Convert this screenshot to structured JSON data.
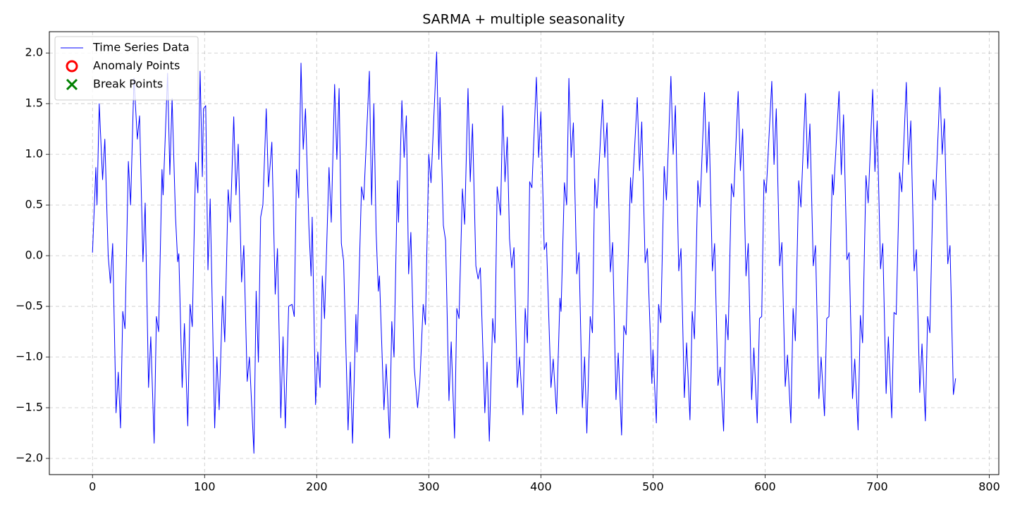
{
  "chart_data": {
    "type": "line",
    "title": "SARMA + multiple seasonality",
    "xlim": [
      -38.5,
      808.5
    ],
    "ylim": [
      -2.16,
      2.21
    ],
    "xticks": [
      0,
      100,
      200,
      300,
      400,
      500,
      600,
      700,
      800
    ],
    "yticks": [
      {
        "value": -2,
        "label": "−2.0"
      },
      {
        "value": -1.5,
        "label": "−1.5"
      },
      {
        "value": -1,
        "label": "−1.0"
      },
      {
        "value": -0.5,
        "label": "−0.5"
      },
      {
        "value": 0,
        "label": "0.0"
      },
      {
        "value": 0.5,
        "label": "0.5"
      },
      {
        "value": 1,
        "label": "1.0"
      },
      {
        "value": 1.5,
        "label": "1.5"
      },
      {
        "value": 2,
        "label": "2.0"
      }
    ],
    "grid": true,
    "legend": "upper left",
    "series": [
      {
        "name": "Time Series Data",
        "color": "#0000ff",
        "marker": "line",
        "x": [
          0,
          3,
          4,
          6,
          9,
          11,
          14,
          16,
          18,
          21,
          23,
          25,
          27,
          29,
          32,
          34,
          37,
          40,
          42,
          45,
          47,
          50,
          52,
          55,
          57,
          59,
          62,
          63,
          67,
          69,
          71,
          74,
          76,
          77,
          80,
          82,
          85,
          87,
          89,
          92,
          94,
          96,
          98,
          99,
          101,
          103,
          105,
          109,
          111,
          113,
          116,
          118,
          121,
          123,
          126,
          128,
          130,
          133,
          135,
          138,
          140,
          144,
          146,
          148,
          150,
          152,
          155,
          157,
          160,
          163,
          165,
          168,
          170,
          172,
          175,
          178,
          180,
          182,
          184,
          186,
          188,
          190,
          193,
          195,
          196,
          199,
          201,
          203,
          205,
          207,
          211,
          213,
          216,
          218,
          220,
          222,
          224,
          228,
          230,
          232,
          235,
          236,
          240,
          242,
          247,
          249,
          251,
          253,
          255,
          256,
          260,
          262,
          265,
          267,
          269,
          272,
          273,
          276,
          278,
          280,
          282,
          284,
          287,
          290,
          292,
          295,
          297,
          300,
          302,
          307,
          309,
          310,
          313,
          315,
          318,
          320,
          323,
          325,
          327,
          330,
          332,
          335,
          337,
          339,
          342,
          344,
          346,
          350,
          352,
          354,
          357,
          359,
          361,
          364,
          366,
          368,
          370,
          372,
          374,
          376,
          379,
          381,
          384,
          386,
          388,
          390,
          392,
          396,
          398,
          400,
          403,
          405,
          409,
          411,
          414,
          417,
          418,
          421,
          423,
          425,
          427,
          429,
          432,
          434,
          437,
          439,
          441,
          444,
          446,
          448,
          450,
          455,
          457,
          459,
          462,
          464,
          467,
          469,
          472,
          474,
          476,
          480,
          481,
          486,
          488,
          490,
          493,
          495,
          499,
          500,
          503,
          505,
          507,
          510,
          512,
          516,
          518,
          520,
          523,
          525,
          528,
          530,
          533,
          535,
          537,
          540,
          542,
          546,
          548,
          550,
          553,
          555,
          558,
          560,
          563,
          565,
          567,
          570,
          572,
          576,
          578,
          580,
          583,
          585,
          588,
          590,
          593,
          595,
          597,
          599,
          601,
          606,
          608,
          610,
          613,
          615,
          618,
          620,
          623,
          625,
          627,
          630,
          632,
          636,
          638,
          640,
          643,
          645,
          648,
          650,
          653,
          655,
          657,
          660,
          661,
          666,
          668,
          670,
          673,
          675,
          678,
          680,
          683,
          685,
          687,
          690,
          692,
          696,
          698,
          700,
          703,
          705,
          708,
          710,
          713,
          715,
          717,
          720,
          722,
          726,
          728,
          730,
          733,
          735,
          738,
          740,
          743,
          745,
          747,
          750,
          752,
          756,
          758,
          760,
          763,
          765,
          768,
          770
        ],
        "values": [
          0.03,
          0.87,
          0.5,
          1.5,
          0.75,
          1.15,
          0.0,
          -0.27,
          0.12,
          -1.55,
          -1.15,
          -1.7,
          -0.55,
          -0.72,
          0.93,
          0.5,
          1.75,
          1.15,
          1.38,
          -0.06,
          0.52,
          -1.3,
          -0.8,
          -1.85,
          -0.6,
          -0.75,
          0.85,
          0.6,
          1.8,
          0.8,
          1.55,
          0.4,
          -0.06,
          0.02,
          -1.3,
          -0.67,
          -1.68,
          -0.48,
          -0.7,
          0.92,
          0.62,
          1.82,
          0.78,
          1.45,
          1.48,
          -0.14,
          0.56,
          -1.7,
          -1.0,
          -1.52,
          -0.4,
          -0.85,
          0.65,
          0.33,
          1.37,
          0.6,
          1.1,
          -0.26,
          0.1,
          -1.24,
          -1.0,
          -1.95,
          -0.35,
          -1.05,
          0.38,
          0.5,
          1.45,
          0.68,
          1.12,
          -0.38,
          0.07,
          -1.6,
          -0.8,
          -1.7,
          -0.5,
          -0.48,
          -0.6,
          0.85,
          0.57,
          1.9,
          1.05,
          1.45,
          0.3,
          -0.2,
          0.38,
          -1.47,
          -0.95,
          -1.3,
          -0.2,
          -0.62,
          0.87,
          0.33,
          1.69,
          0.95,
          1.65,
          0.12,
          -0.05,
          -1.72,
          -1.05,
          -1.85,
          -0.58,
          -0.95,
          0.68,
          0.55,
          1.82,
          0.5,
          1.5,
          0.24,
          -0.35,
          -0.2,
          -1.52,
          -1.07,
          -1.8,
          -0.65,
          -1.0,
          0.74,
          0.33,
          1.53,
          0.97,
          1.38,
          -0.18,
          0.23,
          -1.1,
          -1.5,
          -1.25,
          -0.48,
          -0.68,
          1.0,
          0.72,
          2.01,
          0.95,
          1.56,
          0.3,
          0.15,
          -1.43,
          -0.85,
          -1.8,
          -0.52,
          -0.62,
          0.66,
          0.31,
          1.65,
          0.73,
          1.3,
          -0.1,
          -0.23,
          -0.12,
          -1.55,
          -1.05,
          -1.83,
          -0.62,
          -0.86,
          0.68,
          0.4,
          1.48,
          0.73,
          1.17,
          0.17,
          -0.12,
          0.08,
          -1.3,
          -1.0,
          -1.57,
          -0.52,
          -0.86,
          0.73,
          0.67,
          1.76,
          0.97,
          1.42,
          0.06,
          0.13,
          -1.3,
          -1.02,
          -1.56,
          -0.42,
          -0.55,
          0.72,
          0.5,
          1.75,
          0.97,
          1.31,
          -0.18,
          0.03,
          -1.5,
          -1.0,
          -1.75,
          -0.6,
          -0.76,
          0.76,
          0.47,
          1.54,
          0.97,
          1.31,
          -0.16,
          0.13,
          -1.42,
          -0.96,
          -1.77,
          -0.69,
          -0.78,
          0.77,
          0.52,
          1.56,
          0.84,
          1.32,
          -0.07,
          0.07,
          -1.26,
          -0.93,
          -1.65,
          -0.48,
          -0.66,
          0.88,
          0.55,
          1.77,
          1.0,
          1.48,
          -0.15,
          0.07,
          -1.4,
          -0.86,
          -1.62,
          -0.55,
          -0.82,
          0.74,
          0.48,
          1.61,
          0.82,
          1.32,
          -0.15,
          0.12,
          -1.28,
          -1.1,
          -1.73,
          -0.58,
          -0.83,
          0.71,
          0.58,
          1.62,
          0.84,
          1.25,
          -0.2,
          0.12,
          -1.42,
          -0.91,
          -1.65,
          -0.62,
          -0.6,
          0.75,
          0.62,
          1.72,
          0.9,
          1.45,
          -0.1,
          0.13,
          -1.29,
          -0.98,
          -1.65,
          -0.52,
          -0.84,
          0.74,
          0.48,
          1.6,
          0.86,
          1.3,
          -0.1,
          0.1,
          -1.41,
          -1.0,
          -1.58,
          -0.62,
          -0.6,
          0.8,
          0.6,
          1.62,
          0.8,
          1.39,
          -0.04,
          0.03,
          -1.41,
          -1.02,
          -1.72,
          -0.59,
          -0.86,
          0.79,
          0.52,
          1.64,
          0.83,
          1.33,
          -0.13,
          0.12,
          -1.36,
          -0.8,
          -1.6,
          -0.56,
          -0.58,
          0.82,
          0.63,
          1.71,
          0.9,
          1.33,
          -0.15,
          0.06,
          -1.35,
          -0.87,
          -1.63,
          -0.6,
          -0.76,
          0.75,
          0.55,
          1.66,
          1.0,
          1.35,
          -0.08,
          0.1,
          -1.37,
          -1.21
        ]
      },
      {
        "name": "Anomaly Points",
        "color": "#ff0000",
        "marker": "circle",
        "x": [],
        "values": []
      },
      {
        "name": "Break Points",
        "color": "#008000",
        "marker": "x",
        "x": [],
        "values": []
      }
    ]
  }
}
